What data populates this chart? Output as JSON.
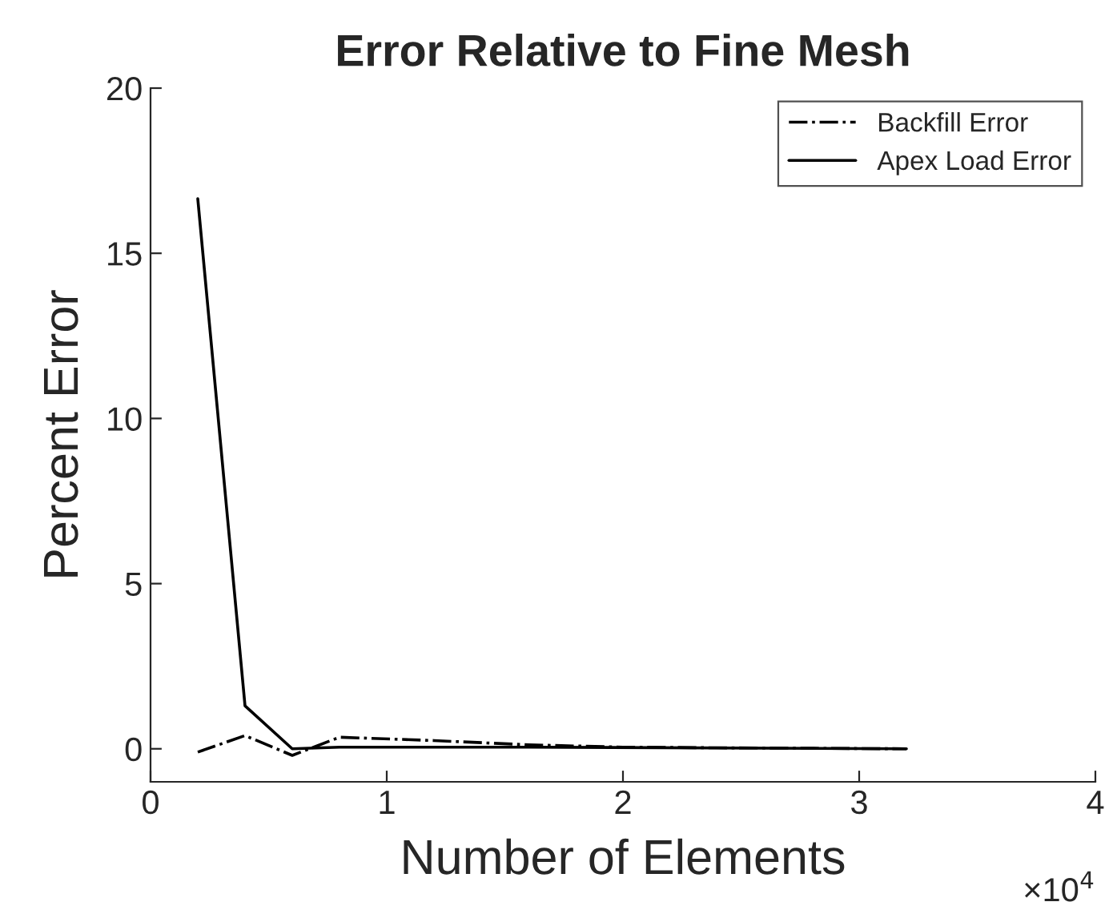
{
  "chart_data": {
    "type": "line",
    "title": "Error Relative to Fine Mesh",
    "xlabel": "Number of Elements",
    "ylabel": "Percent Error",
    "annotations": [
      "×10$^{4}$"
    ],
    "xlim": [
      0,
      4
    ],
    "xticks": [
      0,
      1,
      2,
      3,
      4
    ],
    "ylim": [
      -1,
      20
    ],
    "yticks": [
      0,
      5,
      10,
      15,
      20
    ],
    "grid": false,
    "legend": "top right",
    "marker": "none",
    "series": [
      {
        "name": "Backfill Error",
        "color": "#000000",
        "line_style": "dashdot",
        "x": [
          0.2,
          0.4,
          0.6,
          0.8,
          1.2,
          1.6,
          2.0,
          2.4,
          3.2
        ],
        "values": [
          -0.1,
          0.4,
          -0.2,
          0.35,
          0.25,
          0.12,
          0.05,
          0.03,
          0
        ]
      },
      {
        "name": "Apex Load Error",
        "color": "#000000",
        "line_style": "solid",
        "x": [
          0.2,
          0.4,
          0.6,
          0.8,
          1.6,
          3.2
        ],
        "values": [
          16.65,
          1.3,
          0,
          0.05,
          0.05,
          0
        ]
      }
    ]
  }
}
